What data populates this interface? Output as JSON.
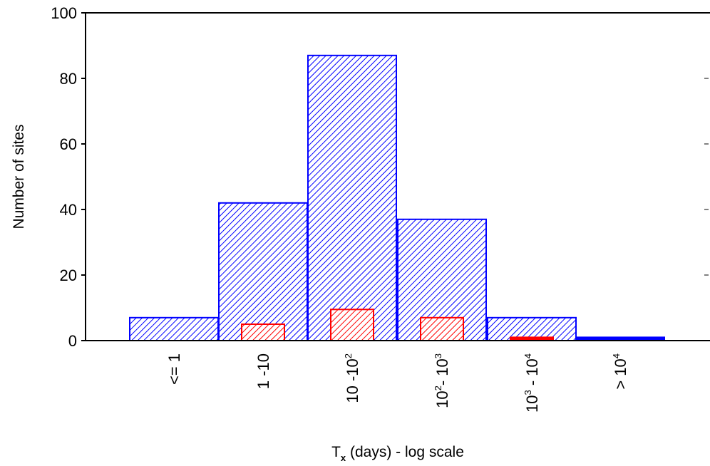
{
  "chart_data": {
    "type": "bar",
    "xlabel": {
      "main": "T",
      "sub": "x",
      "rest": " (days) - log scale"
    },
    "ylabel": "Number of sites",
    "ylim": [
      0,
      100
    ],
    "yticks": [
      "0",
      "20",
      "40",
      "60",
      "80",
      "100"
    ],
    "categories": [
      {
        "base": "<= 1"
      },
      {
        "base": "1 -10"
      },
      {
        "base": "10 -10",
        "sup1": "2"
      },
      {
        "base": "10",
        "sup1": "2",
        "mid": "- 10",
        "sup2": "3"
      },
      {
        "base": "10",
        "sup1": "3",
        "mid": " - 10",
        "sup2": "4"
      },
      {
        "base": "> 10",
        "sup1": "4"
      }
    ],
    "series": [
      {
        "color": "#0000ff",
        "fill": "#ffffff",
        "hatch": "diagonal",
        "values": [
          7,
          42,
          87,
          37,
          7,
          1
        ]
      },
      {
        "color": "#ff0000",
        "fill": "#ffffff",
        "hatch": "diagonal",
        "values": [
          0,
          5,
          9.5,
          7,
          1,
          0
        ]
      }
    ],
    "grid": false,
    "legend": "none"
  }
}
